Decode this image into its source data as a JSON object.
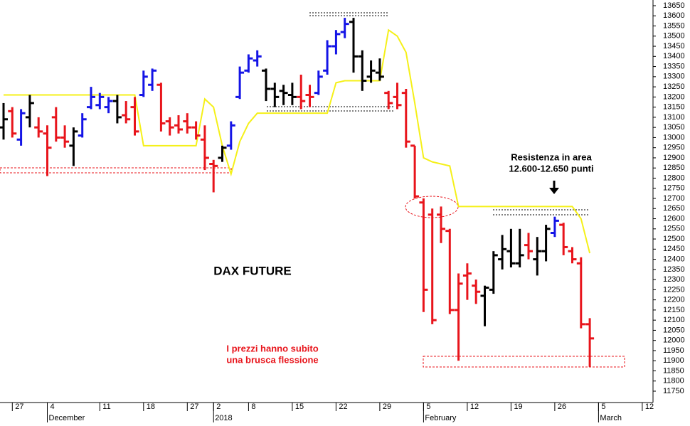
{
  "chart_data": {
    "type": "ohlc",
    "categories": [
      null,
      "27",
      null,
      null,
      null,
      "4",
      null,
      null,
      null,
      null,
      null,
      "11",
      null,
      null,
      null,
      null,
      "18",
      null,
      null,
      null,
      null,
      "27",
      null,
      null,
      "2",
      null,
      null,
      null,
      "8",
      null,
      null,
      null,
      null,
      "15",
      null,
      null,
      null,
      null,
      "22",
      null,
      null,
      null,
      null,
      "29",
      null,
      null,
      null,
      null,
      "5",
      null,
      null,
      null,
      null,
      "12",
      null,
      null,
      null,
      null,
      "19",
      null,
      null,
      null,
      null,
      "26",
      null,
      null,
      null,
      null,
      "5",
      null,
      null,
      null,
      null,
      "12",
      null
    ],
    "month_labels": [
      null,
      null,
      null,
      null,
      null,
      "December",
      null,
      null,
      null,
      null,
      null,
      null,
      null,
      null,
      null,
      null,
      null,
      null,
      null,
      null,
      null,
      null,
      null,
      null,
      "2018",
      null,
      null,
      null,
      null,
      null,
      null,
      null,
      null,
      null,
      null,
      null,
      null,
      null,
      null,
      null,
      null,
      null,
      null,
      null,
      null,
      null,
      null,
      null,
      "February",
      null,
      null,
      null,
      null,
      null,
      null,
      null,
      null,
      null,
      null,
      null,
      null,
      null,
      null,
      null,
      null,
      null,
      null,
      null,
      "March",
      null,
      null,
      null,
      null,
      null,
      null
    ],
    "open": [
      13050,
      13130,
      12990,
      13100,
      13050,
      13020,
      13100,
      13000,
      12960,
      13010,
      13150,
      13160,
      13150,
      13180,
      13110,
      13150,
      13210,
      13260,
      13260,
      13080,
      13060,
      13080,
      13050,
      12990,
      12870,
      12900,
      12960,
      13200,
      13330,
      13380,
      13330,
      13240,
      13230,
      13210,
      13200,
      13210,
      13220,
      13330,
      13450,
      13520,
      13570,
      13400,
      13300,
      13320,
      13220,
      13200,
      13220,
      12960,
      12680,
      12620,
      12620,
      12540,
      12150,
      12320,
      12270,
      12220,
      12250,
      12400,
      12440,
      12380,
      12470,
      12400,
      12440,
      12530,
      12570,
      12440,
      12380,
      12080,
      null,
      null,
      null,
      null,
      null,
      null,
      null
    ],
    "high": [
      13170,
      13150,
      13140,
      13210,
      13100,
      13060,
      13150,
      13060,
      13050,
      13120,
      13250,
      13220,
      13200,
      13210,
      13180,
      13200,
      13330,
      13340,
      13270,
      13100,
      13110,
      13120,
      13080,
      13060,
      12890,
      12960,
      13080,
      13350,
      13410,
      13430,
      13340,
      13270,
      13260,
      13270,
      13310,
      13260,
      13330,
      13480,
      13530,
      13590,
      13590,
      13430,
      13380,
      13390,
      13230,
      13270,
      13240,
      12960,
      12700,
      12650,
      12660,
      12550,
      12330,
      12380,
      12300,
      12270,
      12440,
      12520,
      12550,
      12550,
      12530,
      12510,
      12570,
      12610,
      12580,
      12460,
      12410,
      12110,
      null,
      null,
      null,
      null,
      null,
      null,
      null
    ],
    "low": [
      12990,
      13000,
      12960,
      13050,
      13000,
      12810,
      12980,
      12950,
      12860,
      13000,
      13140,
      13140,
      13120,
      13070,
      13070,
      13010,
      13200,
      13230,
      13030,
      13010,
      13020,
      13020,
      12990,
      12840,
      12730,
      12880,
      12940,
      13190,
      13320,
      13350,
      13180,
      13150,
      13160,
      13160,
      13140,
      13150,
      13210,
      13310,
      13410,
      13490,
      13320,
      13230,
      13270,
      13280,
      13140,
      13140,
      12950,
      12700,
      12140,
      12080,
      12480,
      12130,
      11900,
      12200,
      12180,
      12070,
      12230,
      12350,
      12360,
      12360,
      12400,
      12320,
      12390,
      12510,
      12420,
      12380,
      12060,
      11870,
      null,
      null,
      null,
      null,
      null,
      null,
      null
    ],
    "close": [
      13090,
      13020,
      13120,
      13170,
      13030,
      12950,
      13000,
      12980,
      13030,
      13090,
      13200,
      13200,
      13180,
      13100,
      13090,
      13030,
      13300,
      13330,
      13070,
      13050,
      13040,
      13050,
      13010,
      12900,
      12860,
      12950,
      13060,
      13320,
      13390,
      13400,
      13240,
      13200,
      13220,
      13200,
      13180,
      13200,
      13300,
      13450,
      13510,
      13560,
      13400,
      13280,
      13330,
      13300,
      13170,
      13160,
      12980,
      12710,
      12250,
      12100,
      12550,
      12150,
      12280,
      12330,
      12240,
      12260,
      12420,
      12450,
      12380,
      12420,
      12440,
      12440,
      12550,
      12590,
      12460,
      12400,
      12080,
      12010,
      null,
      null,
      null,
      null,
      null,
      null,
      null
    ],
    "bar_colors": [
      "#000000",
      "#e8141b",
      "#1414e6",
      "#000000",
      "#e8141b",
      "#e8141b",
      "#e8141b",
      "#e8141b",
      "#000000",
      "#1414e6",
      "#1414e6",
      "#1414e6",
      "#1414e6",
      "#000000",
      "#e8141b",
      "#e8141b",
      "#1414e6",
      "#1414e6",
      "#e8141b",
      "#e8141b",
      "#e8141b",
      "#e8141b",
      "#e8141b",
      "#e8141b",
      "#e8141b",
      "#000000",
      "#1414e6",
      "#1414e6",
      "#1414e6",
      "#1414e6",
      "#000000",
      "#000000",
      "#000000",
      "#000000",
      "#e8141b",
      "#e8141b",
      "#1414e6",
      "#1414e6",
      "#1414e6",
      "#1414e6",
      "#000000",
      "#000000",
      "#000000",
      "#000000",
      "#e8141b",
      "#e8141b",
      "#e8141b",
      "#e8141b",
      "#e8141b",
      "#e8141b",
      "#e8141b",
      "#e8141b",
      "#e8141b",
      "#e8141b",
      "#e8141b",
      "#000000",
      "#000000",
      "#000000",
      "#000000",
      "#000000",
      "#e8141b",
      "#000000",
      "#000000",
      "#1414e6",
      "#e8141b",
      "#e8141b",
      "#e8141b",
      "#e8141b",
      null,
      null,
      null,
      null,
      null,
      null,
      null
    ],
    "line": {
      "color": "#f5f019",
      "values": [
        13210,
        13210,
        13210,
        13210,
        13210,
        13210,
        13210,
        13210,
        13210,
        13210,
        13210,
        13210,
        13210,
        13210,
        13210,
        13210,
        12960,
        12960,
        12960,
        12960,
        12960,
        12960,
        12960,
        13190,
        13150,
        12960,
        12820,
        12980,
        13070,
        13120,
        13120,
        13120,
        13120,
        13120,
        13120,
        13120,
        13120,
        13120,
        13270,
        13280,
        13280,
        13280,
        13280,
        13280,
        13530,
        13500,
        13420,
        13170,
        12900,
        12880,
        12870,
        12860,
        12660,
        12660,
        12660,
        12660,
        12660,
        12660,
        12660,
        12660,
        12660,
        12660,
        12660,
        12660,
        12660,
        12660,
        12600,
        12430,
        null,
        null,
        null,
        null,
        null,
        null,
        null
      ]
    },
    "title": "DAX FUTURE",
    "note": [
      "I prezzi hanno subito",
      "una brusca flessione"
    ],
    "resistance_note": [
      "Resistenza in area",
      "12.600-12.650 punti"
    ],
    "ylim": [
      11715,
      13678
    ],
    "yticks": [
      11750,
      11800,
      11850,
      11900,
      11950,
      12000,
      12050,
      12100,
      12150,
      12200,
      12250,
      12300,
      12350,
      12400,
      12450,
      12500,
      12550,
      12600,
      12650,
      12700,
      12750,
      12800,
      12850,
      12900,
      12950,
      13000,
      13050,
      13100,
      13150,
      13200,
      13250,
      13300,
      13350,
      13400,
      13450,
      13500,
      13550,
      13600,
      13650
    ]
  }
}
